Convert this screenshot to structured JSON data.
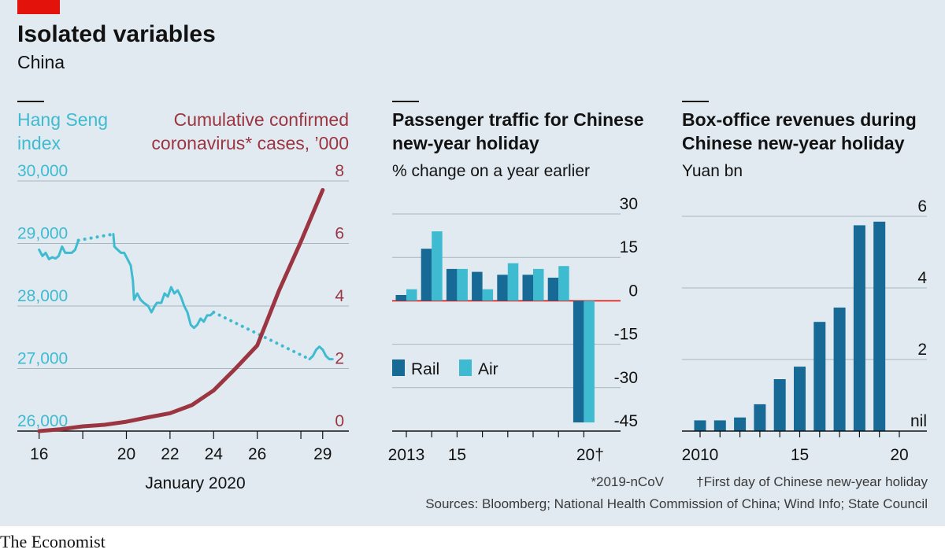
{
  "header": {
    "title": "Isolated variables",
    "subtitle": "China",
    "brand": "The Economist"
  },
  "colors": {
    "background": "#e1eaf0",
    "accent_red": "#e3120b",
    "hang_seng": "#3ebbd0",
    "cases": "#9c3542",
    "rail": "#176a96",
    "air": "#3ebbd0",
    "zero_line": "#e3120b"
  },
  "chart_data": [
    {
      "type": "line",
      "left_axis_title": "Hang Seng index",
      "right_axis_title": "Cumulative confirmed coronavirus* cases, ’000",
      "xlabel": "January 2020",
      "x_ticks": [
        "16",
        "20",
        "22",
        "24",
        "26",
        "29"
      ],
      "x_tick_days": [
        16,
        18,
        20,
        22,
        24,
        26,
        28,
        29
      ],
      "x_range": [
        15,
        30.2
      ],
      "left_ylim": [
        26000,
        30000
      ],
      "left_y_ticks": [
        "26,000",
        "27,000",
        "28,000",
        "29,000",
        "30,000"
      ],
      "right_ylim": [
        0,
        8
      ],
      "right_y_ticks": [
        "0",
        "2",
        "4",
        "6",
        "8"
      ],
      "grid": true,
      "series": [
        {
          "axis": "left",
          "style": "solid",
          "points": [
            [
              16,
              28900
            ],
            [
              16.15,
              28800
            ],
            [
              16.3,
              28850
            ],
            [
              16.45,
              28750
            ],
            [
              16.6,
              28780
            ],
            [
              16.75,
              28760
            ],
            [
              16.9,
              28800
            ],
            [
              17.05,
              28950
            ],
            [
              17.2,
              28850
            ],
            [
              17.35,
              28850
            ],
            [
              17.5,
              28850
            ],
            [
              17.65,
              28900
            ],
            [
              17.8,
              29050
            ]
          ]
        },
        {
          "axis": "left",
          "style": "dotted",
          "points": [
            [
              17.8,
              29050
            ],
            [
              19.4,
              29150
            ]
          ]
        },
        {
          "axis": "left",
          "style": "solid",
          "points": [
            [
              19.4,
              29150
            ],
            [
              19.45,
              28950
            ],
            [
              19.6,
              28900
            ],
            [
              19.75,
              28850
            ],
            [
              19.9,
              28850
            ],
            [
              20.05,
              28750
            ],
            [
              20.2,
              28650
            ],
            [
              20.3,
              28400
            ],
            [
              20.35,
              28100
            ],
            [
              20.5,
              28200
            ],
            [
              20.65,
              28100
            ],
            [
              20.8,
              28050
            ],
            [
              21,
              28000
            ],
            [
              21.15,
              27900
            ],
            [
              21.3,
              28000
            ],
            [
              21.4,
              28050
            ],
            [
              21.6,
              28050
            ],
            [
              21.75,
              28200
            ],
            [
              21.9,
              28150
            ],
            [
              22.05,
              28300
            ],
            [
              22.2,
              28200
            ],
            [
              22.35,
              28250
            ],
            [
              22.5,
              28150
            ],
            [
              22.65,
              28000
            ],
            [
              22.8,
              27900
            ],
            [
              22.95,
              27700
            ],
            [
              23.1,
              27650
            ],
            [
              23.25,
              27700
            ],
            [
              23.4,
              27800
            ],
            [
              23.55,
              27750
            ],
            [
              23.7,
              27850
            ],
            [
              23.85,
              27850
            ],
            [
              24,
              27900
            ]
          ]
        },
        {
          "axis": "left",
          "style": "dotted",
          "points": [
            [
              24,
              27900
            ],
            [
              28.4,
              27150
            ]
          ]
        },
        {
          "axis": "left",
          "style": "solid",
          "points": [
            [
              28.4,
              27150
            ],
            [
              28.55,
              27200
            ],
            [
              28.7,
              27300
            ],
            [
              28.85,
              27350
            ],
            [
              29,
              27300
            ],
            [
              29.15,
              27200
            ],
            [
              29.3,
              27150
            ],
            [
              29.45,
              27150
            ]
          ]
        },
        {
          "axis": "right",
          "style": "solid",
          "points": [
            [
              16,
              0
            ],
            [
              17,
              0.06
            ],
            [
              18,
              0.15
            ],
            [
              19,
              0.2
            ],
            [
              20,
              0.3
            ],
            [
              21,
              0.44
            ],
            [
              22,
              0.57
            ],
            [
              23,
              0.83
            ],
            [
              24,
              1.3
            ],
            [
              25,
              2
            ],
            [
              26,
              2.74
            ],
            [
              27,
              4.5
            ],
            [
              28,
              6.06
            ],
            [
              29,
              7.71
            ]
          ]
        }
      ]
    },
    {
      "type": "bar",
      "title": "Passenger traffic for Chinese new-year holiday",
      "subtitle": "% change on a year earlier",
      "categories": [
        "2013",
        "2014",
        "2015",
        "2016",
        "2017",
        "2018",
        "2019",
        "2020"
      ],
      "x_tick_labels": [
        "2013",
        "15",
        "20†"
      ],
      "ylim": [
        -45,
        30
      ],
      "y_ticks": [
        "30",
        "15",
        "0",
        "-15",
        "-30",
        "-45"
      ],
      "legend": "middle-left",
      "series": [
        {
          "name": "Rail",
          "values": [
            2,
            18,
            11,
            10,
            9,
            9,
            8,
            -42
          ]
        },
        {
          "name": "Air",
          "values": [
            4,
            24,
            11,
            4,
            13,
            11,
            12,
            -42
          ]
        }
      ]
    },
    {
      "type": "bar",
      "title": "Box-office revenues during Chinese new-year holiday",
      "subtitle": "Yuan bn",
      "categories": [
        "2010",
        "2011",
        "2012",
        "2013",
        "2014",
        "2015",
        "2016",
        "2017",
        "2018",
        "2019"
      ],
      "x_tick_labels": [
        "2010",
        "15",
        "20"
      ],
      "ylim": [
        0,
        6
      ],
      "y_ticks": [
        "6",
        "4",
        "2",
        "nil"
      ],
      "grid": true,
      "values": [
        0.3,
        0.3,
        0.38,
        0.75,
        1.45,
        1.8,
        3.05,
        3.45,
        5.75,
        5.85
      ]
    }
  ],
  "footnotes": {
    "note1": "*2019-nCoV",
    "note2": "†First day of Chinese new-year holiday",
    "sources": "Sources: Bloomberg; National Health Commission of China; Wind Info; State Council"
  }
}
